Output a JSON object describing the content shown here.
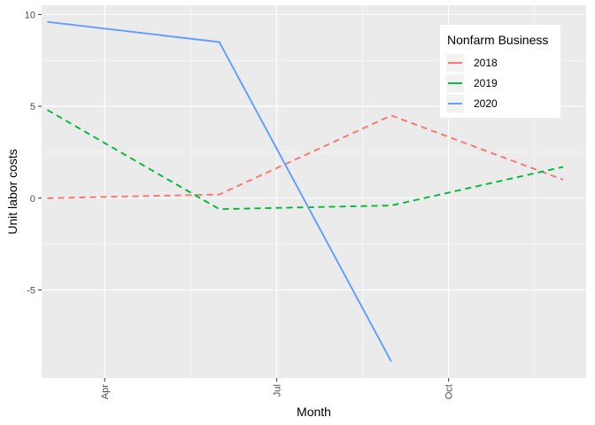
{
  "chart_data": {
    "type": "line",
    "title": "",
    "xlabel": "Month",
    "ylabel": "Unit labor costs",
    "x_ticks": [
      {
        "label": "Apr",
        "month": 4
      },
      {
        "label": "Jul",
        "month": 7
      },
      {
        "label": "Oct",
        "month": 10
      }
    ],
    "y_ticks": [
      {
        "label": "-5",
        "value": -5
      },
      {
        "label": "0",
        "value": 0
      },
      {
        "label": "5",
        "value": 5
      },
      {
        "label": "10",
        "value": 10
      }
    ],
    "xlim": [
      2.9,
      12.4
    ],
    "ylim": [
      -9.8,
      10.5
    ],
    "grid": true,
    "legend": {
      "title": "Nonfarm Business",
      "position": "top-right"
    },
    "series": [
      {
        "name": "2018",
        "color": "#F8766D",
        "dash": "dashed",
        "x": [
          3,
          6,
          9,
          12
        ],
        "values": [
          0.0,
          0.2,
          4.5,
          1.0
        ]
      },
      {
        "name": "2019",
        "color": "#00BA38",
        "dash": "dashed",
        "x": [
          3,
          6,
          9,
          12
        ],
        "values": [
          4.8,
          -0.6,
          -0.4,
          1.7
        ]
      },
      {
        "name": "2020",
        "color": "#619CFF",
        "dash": "solid",
        "x": [
          3,
          6,
          9
        ],
        "values": [
          9.6,
          8.5,
          -8.9
        ]
      }
    ]
  }
}
